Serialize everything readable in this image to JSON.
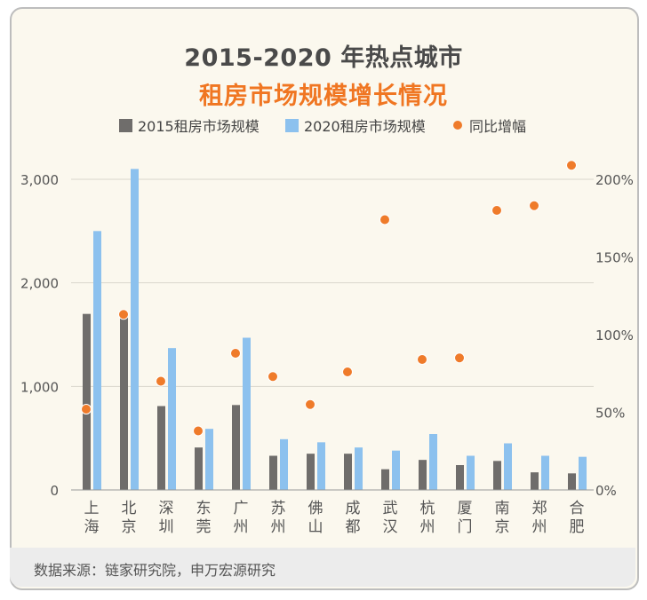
{
  "title_line1": "2015-2020 年热点城市",
  "title_line2": "租房市场规模增长情况",
  "legend": {
    "series1": "2015租房市场规模",
    "series2": "2020租房市场规模",
    "series3": "同比增幅"
  },
  "source": "数据来源：链家研究院，申万宏源研究",
  "colors": {
    "series2015": "#6f6d6b",
    "series2020": "#8cc1ee",
    "growth": "#ef7b2a",
    "title_accent": "#f07622",
    "background": "#fbf8ee"
  },
  "chart_data": {
    "type": "bar",
    "categories": [
      "上海",
      "北京",
      "深圳",
      "东莞",
      "广州",
      "苏州",
      "佛山",
      "成都",
      "武汉",
      "杭州",
      "厦门",
      "南京",
      "郑州",
      "合肥"
    ],
    "series": [
      {
        "name": "2015租房市场规模",
        "axis": "left",
        "values": [
          1700,
          1700,
          810,
          410,
          820,
          330,
          350,
          350,
          200,
          290,
          240,
          280,
          170,
          160
        ]
      },
      {
        "name": "2020租房市场规模",
        "axis": "left",
        "values": [
          2500,
          3100,
          1370,
          590,
          1470,
          490,
          460,
          410,
          380,
          540,
          330,
          450,
          330,
          320
        ]
      },
      {
        "name": "同比增幅",
        "axis": "right",
        "type": "scatter",
        "values": [
          52,
          113,
          70,
          38,
          88,
          73,
          55,
          76,
          174,
          84,
          85,
          180,
          183,
          209
        ]
      }
    ],
    "y_left": {
      "ticks": [
        0,
        1000,
        2000,
        3000
      ],
      "tick_labels": [
        "0",
        "1,000",
        "2,000",
        "3,000"
      ],
      "lim": [
        0,
        3000
      ]
    },
    "y_right": {
      "ticks": [
        0,
        50,
        100,
        150,
        200
      ],
      "tick_labels": [
        "0%",
        "50%",
        "100%",
        "150%",
        "200%"
      ],
      "lim": [
        0,
        200
      ]
    },
    "grid": true,
    "legend_position": "top-center"
  }
}
